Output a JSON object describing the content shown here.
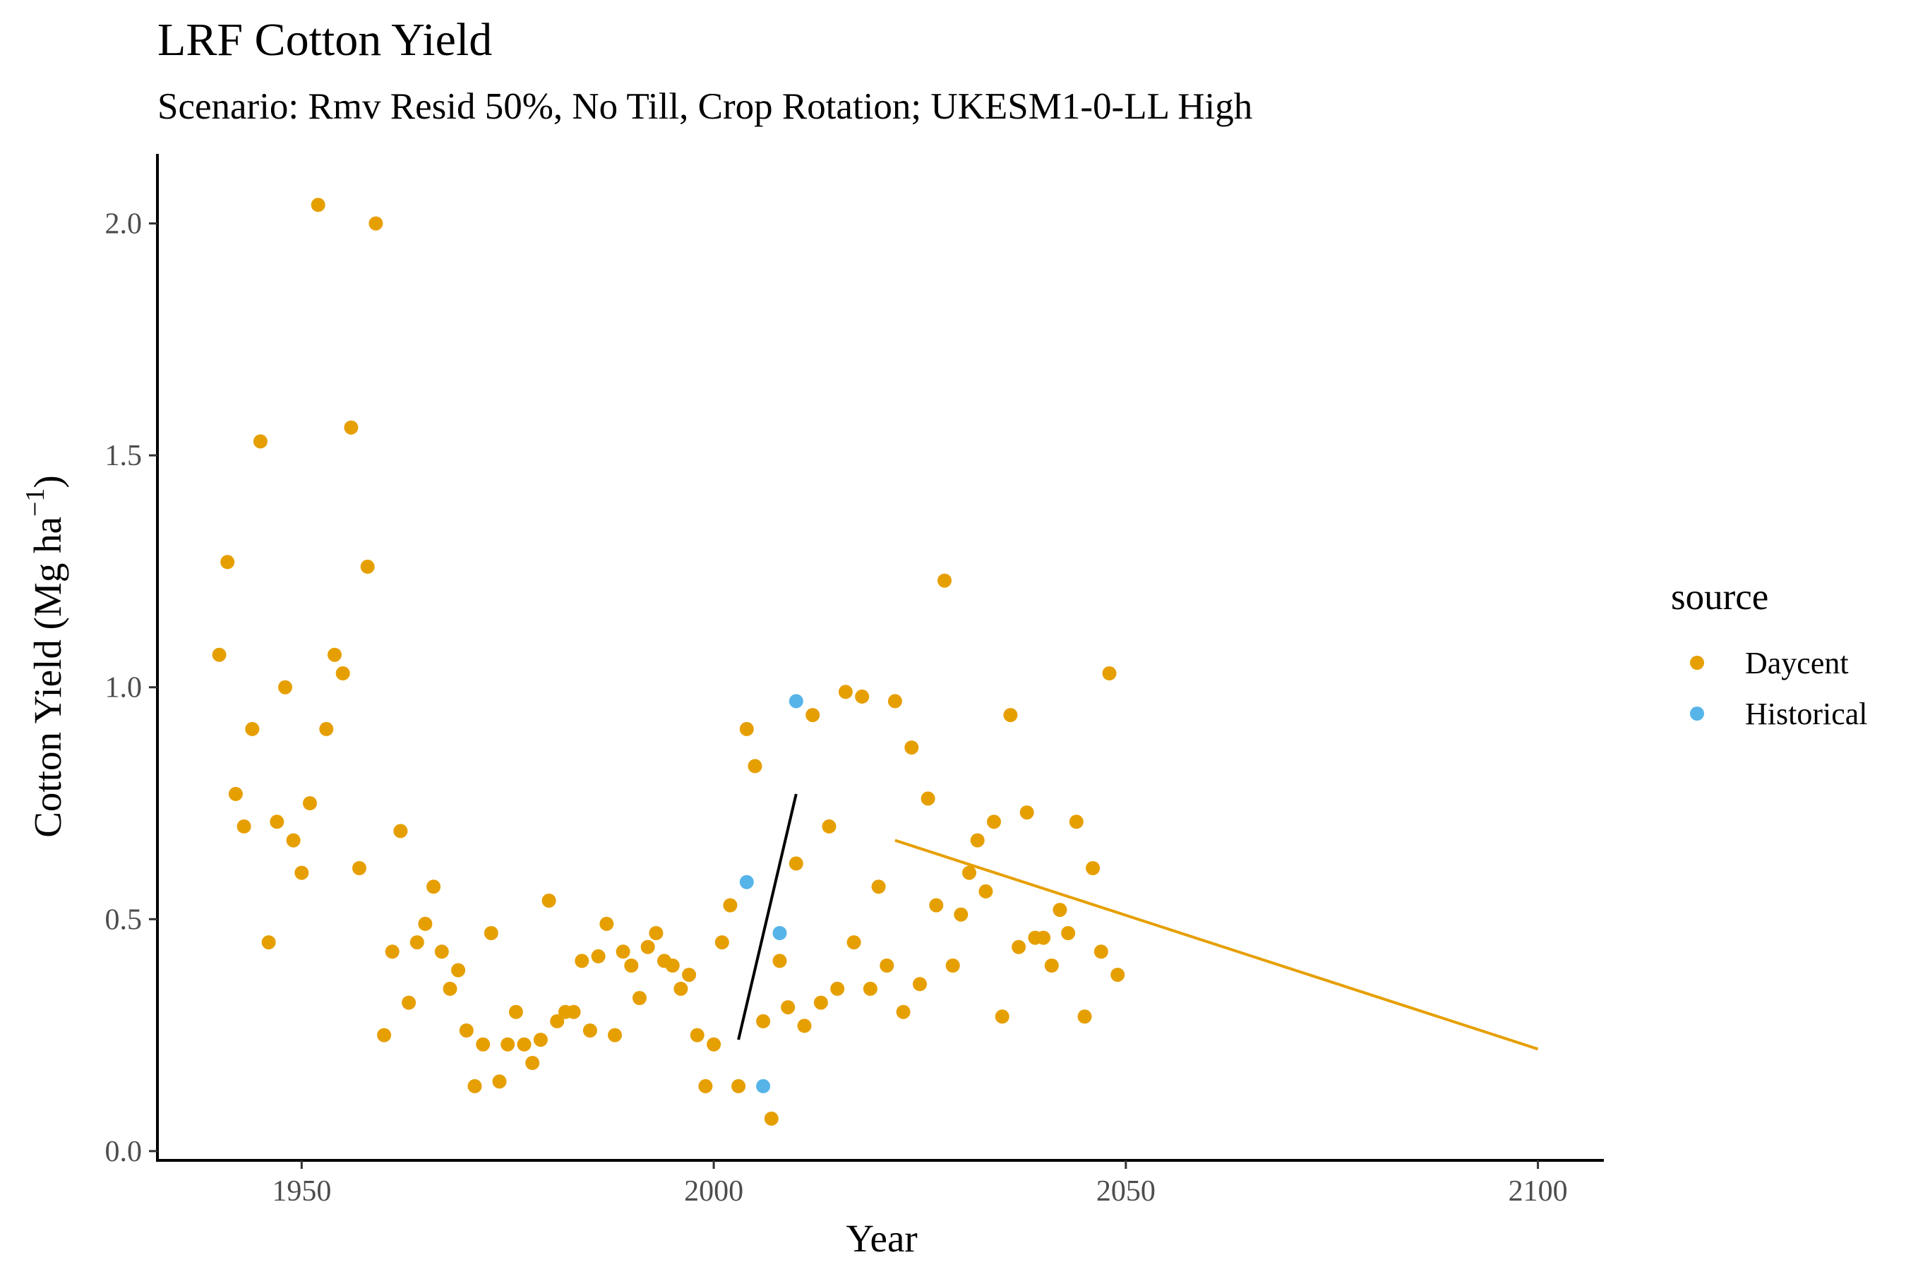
{
  "chart_data": {
    "type": "scatter",
    "title": "LRF Cotton Yield",
    "subtitle": "Scenario: Rmv Resid 50%, No Till, Crop Rotation; UKESM1-0-LL High",
    "xlabel": "Year",
    "ylabel_main": "Cotton Yield (Mg ha",
    "ylabel_sup": "−1",
    "ylabel_close": ")",
    "xlim": [
      1932.5,
      2108
    ],
    "ylim": [
      -0.02,
      2.15
    ],
    "x_ticks": [
      1950,
      2000,
      2050,
      2100
    ],
    "x_tick_labels": [
      "1950",
      "2000",
      "2050",
      "2100"
    ],
    "y_ticks": [
      0,
      0.5,
      1.0,
      1.5,
      2.0
    ],
    "y_tick_labels": [
      "0.0",
      "0.5",
      "1.0",
      "1.5",
      "2.0"
    ],
    "grid": false,
    "legend": {
      "title": "source",
      "position": "right",
      "entries": [
        {
          "label": "Daycent",
          "color": "#E69F00"
        },
        {
          "label": "Historical",
          "color": "#56B4E9"
        }
      ]
    },
    "series": [
      {
        "name": "Daycent",
        "color": "#E69F00",
        "points": [
          [
            1940,
            1.07
          ],
          [
            1941,
            1.27
          ],
          [
            1942,
            0.77
          ],
          [
            1943,
            0.7
          ],
          [
            1944,
            0.91
          ],
          [
            1945,
            1.53
          ],
          [
            1946,
            0.45
          ],
          [
            1947,
            0.71
          ],
          [
            1948,
            1.0
          ],
          [
            1949,
            0.67
          ],
          [
            1950,
            0.6
          ],
          [
            1951,
            0.75
          ],
          [
            1952,
            2.04
          ],
          [
            1953,
            0.91
          ],
          [
            1954,
            1.07
          ],
          [
            1955,
            1.03
          ],
          [
            1956,
            1.56
          ],
          [
            1957,
            0.61
          ],
          [
            1958,
            1.26
          ],
          [
            1959,
            2.0
          ],
          [
            1960,
            0.25
          ],
          [
            1961,
            0.43
          ],
          [
            1962,
            0.69
          ],
          [
            1963,
            0.32
          ],
          [
            1964,
            0.45
          ],
          [
            1965,
            0.49
          ],
          [
            1966,
            0.57
          ],
          [
            1967,
            0.43
          ],
          [
            1968,
            0.35
          ],
          [
            1969,
            0.39
          ],
          [
            1970,
            0.26
          ],
          [
            1971,
            0.14
          ],
          [
            1972,
            0.23
          ],
          [
            1973,
            0.47
          ],
          [
            1974,
            0.15
          ],
          [
            1975,
            0.23
          ],
          [
            1976,
            0.3
          ],
          [
            1977,
            0.23
          ],
          [
            1978,
            0.19
          ],
          [
            1979,
            0.24
          ],
          [
            1980,
            0.54
          ],
          [
            1981,
            0.28
          ],
          [
            1982,
            0.3
          ],
          [
            1983,
            0.3
          ],
          [
            1984,
            0.41
          ],
          [
            1985,
            0.26
          ],
          [
            1986,
            0.42
          ],
          [
            1987,
            0.49
          ],
          [
            1988,
            0.25
          ],
          [
            1989,
            0.43
          ],
          [
            1990,
            0.4
          ],
          [
            1991,
            0.33
          ],
          [
            1992,
            0.44
          ],
          [
            1993,
            0.47
          ],
          [
            1994,
            0.41
          ],
          [
            1995,
            0.4
          ],
          [
            1996,
            0.35
          ],
          [
            1997,
            0.38
          ],
          [
            1998,
            0.25
          ],
          [
            1999,
            0.14
          ],
          [
            2000,
            0.23
          ],
          [
            2001,
            0.45
          ],
          [
            2002,
            0.53
          ],
          [
            2003,
            0.14
          ],
          [
            2004,
            0.91
          ],
          [
            2005,
            0.83
          ],
          [
            2006,
            0.28
          ],
          [
            2007,
            0.07
          ],
          [
            2008,
            0.41
          ],
          [
            2009,
            0.31
          ],
          [
            2010,
            0.62
          ],
          [
            2011,
            0.27
          ],
          [
            2012,
            0.94
          ],
          [
            2013,
            0.32
          ],
          [
            2014,
            0.7
          ],
          [
            2015,
            0.35
          ],
          [
            2016,
            0.99
          ],
          [
            2017,
            0.45
          ],
          [
            2018,
            0.98
          ],
          [
            2019,
            0.35
          ],
          [
            2020,
            0.57
          ],
          [
            2021,
            0.4
          ],
          [
            2022,
            0.97
          ],
          [
            2023,
            0.3
          ],
          [
            2024,
            0.87
          ],
          [
            2025,
            0.36
          ],
          [
            2026,
            0.76
          ],
          [
            2027,
            0.53
          ],
          [
            2028,
            1.23
          ],
          [
            2029,
            0.4
          ],
          [
            2030,
            0.51
          ],
          [
            2031,
            0.6
          ],
          [
            2032,
            0.67
          ],
          [
            2033,
            0.56
          ],
          [
            2034,
            0.71
          ],
          [
            2035,
            0.29
          ],
          [
            2036,
            0.94
          ],
          [
            2037,
            0.44
          ],
          [
            2038,
            0.73
          ],
          [
            2039,
            0.46
          ],
          [
            2040,
            0.46
          ],
          [
            2041,
            0.4
          ],
          [
            2042,
            0.52
          ],
          [
            2043,
            0.47
          ],
          [
            2044,
            0.71
          ],
          [
            2045,
            0.29
          ],
          [
            2046,
            0.61
          ],
          [
            2047,
            0.43
          ],
          [
            2048,
            1.03
          ],
          [
            2049,
            0.38
          ]
        ]
      },
      {
        "name": "Historical",
        "color": "#56B4E9",
        "points": [
          [
            2004,
            0.58
          ],
          [
            2006,
            0.14
          ],
          [
            2008,
            0.47
          ],
          [
            2010,
            0.97
          ]
        ]
      }
    ],
    "trend_lines": [
      {
        "color": "#000000",
        "x": [
          2003,
          2010
        ],
        "y": [
          0.24,
          0.77
        ]
      },
      {
        "color": "#E69F00",
        "x": [
          2022,
          2100
        ],
        "y": [
          0.67,
          0.22
        ]
      }
    ]
  }
}
